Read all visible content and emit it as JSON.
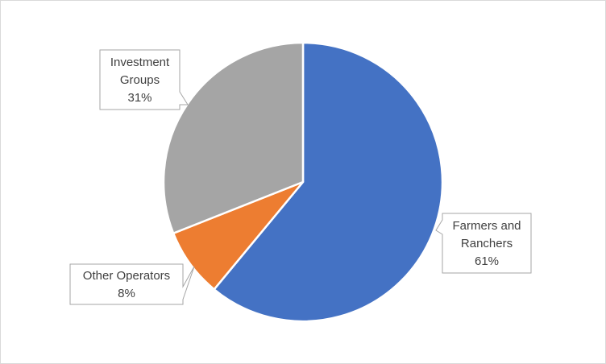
{
  "chart_data": {
    "type": "pie",
    "title": "",
    "series": [
      {
        "label_lines": [
          "Farmers and",
          "Ranchers"
        ],
        "value": 61,
        "value_label": "61%",
        "color": "#4472c4"
      },
      {
        "label_lines": [
          "Other Operators"
        ],
        "value": 8,
        "value_label": "8%",
        "color": "#ed7d31"
      },
      {
        "label_lines": [
          "Investment",
          "Groups"
        ],
        "value": 31,
        "value_label": "31%",
        "color": "#a5a5a5"
      }
    ],
    "start_angle_deg": 0,
    "direction": "clockwise",
    "legend": "none",
    "labels": "callouts"
  }
}
